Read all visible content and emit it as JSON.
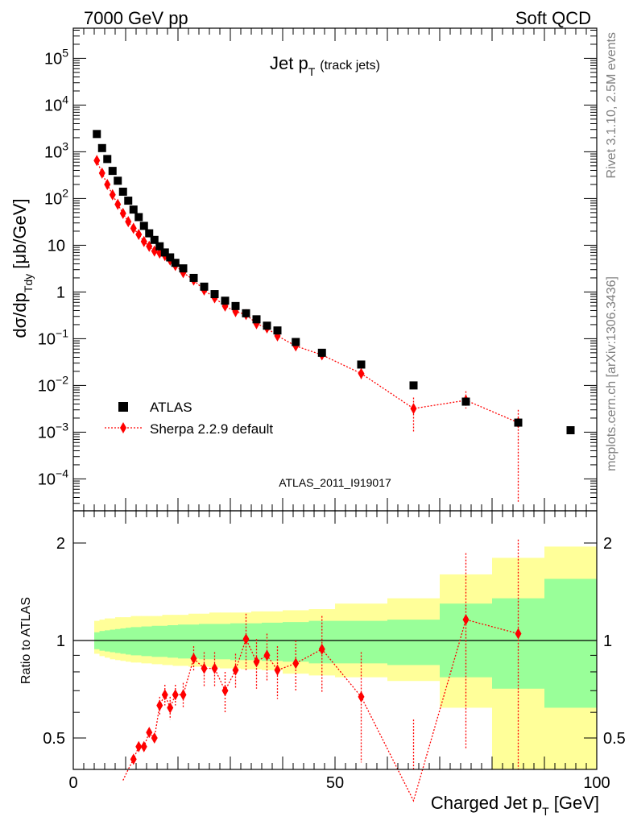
{
  "header": {
    "left": "7000 GeV pp",
    "right": "Soft QCD"
  },
  "side_labels": {
    "rivet": "Rivet 3.1.10,  2.5M events",
    "mcplots": "mcplots.cern.ch [arXiv:1306.3436]"
  },
  "colors": {
    "data": "#000000",
    "mc": "#ff0000",
    "band_inner": "#99ff99",
    "band_outer": "#ffff99",
    "analysis_label": "#909090"
  },
  "chart_data": [
    {
      "type": "scatter",
      "title": "Jet pT (track jets)",
      "title_main": "Jet p",
      "title_sub": "T",
      "title_extra": "(track jets)",
      "ylabel": "dσ/dp_Tdy [μb/GeV]",
      "ylabel_parts": {
        "main": "dσ/dp",
        "sub": "Tdy",
        "unit": " [μb/GeV]"
      },
      "yscale": "log",
      "xlim": [
        0,
        100
      ],
      "ylim": [
        3e-05,
        400000.0
      ],
      "analysis_label": "ATLAS_2011_I919017",
      "legend_position": "bottom-left",
      "ytick_labels": [
        {
          "value": 100000,
          "base": "10",
          "exp": "5"
        },
        {
          "value": 10000,
          "base": "10",
          "exp": "4"
        },
        {
          "value": 1000,
          "base": "10",
          "exp": "3"
        },
        {
          "value": 100,
          "base": "10",
          "exp": "2"
        },
        {
          "value": 10,
          "base": "10",
          "exp": ""
        },
        {
          "value": 1,
          "base": "1",
          "exp": ""
        },
        {
          "value": 0.1,
          "base": "10",
          "exp": "−1"
        },
        {
          "value": 0.01,
          "base": "10",
          "exp": "−2"
        },
        {
          "value": 0.001,
          "base": "10",
          "exp": "−3"
        },
        {
          "value": 0.0001,
          "base": "10",
          "exp": "−4"
        }
      ],
      "series": [
        {
          "name": "ATLAS",
          "marker": "square",
          "x": [
            4.5,
            5.5,
            6.5,
            7.5,
            8.5,
            9.5,
            10.5,
            11.5,
            12.5,
            13.5,
            14.5,
            15.5,
            16.5,
            17.5,
            18.5,
            19.5,
            21,
            23,
            25,
            27,
            29,
            31,
            33,
            35,
            37,
            39,
            42.5,
            47.5,
            55,
            65,
            75,
            85,
            95
          ],
          "y": [
            2400,
            1200,
            700,
            390,
            240,
            140,
            90,
            58,
            40,
            26,
            18,
            13,
            9.5,
            7,
            5.5,
            4.2,
            3.2,
            2.0,
            1.3,
            0.9,
            0.65,
            0.5,
            0.35,
            0.26,
            0.19,
            0.15,
            0.085,
            0.05,
            0.028,
            0.01,
            0.0045,
            0.0016,
            0.0011
          ]
        },
        {
          "name": "Sherpa 2.2.9 default",
          "marker": "diamond",
          "x": [
            4.5,
            5.5,
            6.5,
            7.5,
            8.5,
            9.5,
            10.5,
            11.5,
            12.5,
            13.5,
            14.5,
            15.5,
            16.5,
            17.5,
            18.5,
            19.5,
            21,
            23,
            25,
            27,
            29,
            31,
            33,
            35,
            37,
            39,
            42.5,
            47.5,
            55,
            65,
            75,
            85
          ],
          "y": [
            650,
            350,
            200,
            120,
            75,
            48,
            32,
            23,
            17,
            12,
            9.5,
            7.5,
            6.8,
            6.0,
            4.8,
            3.7,
            2.6,
            1.8,
            1.1,
            0.75,
            0.5,
            0.38,
            0.33,
            0.21,
            0.17,
            0.115,
            0.07,
            0.045,
            0.018,
            0.0032,
            0.0048,
            0.0016
          ]
        }
      ]
    },
    {
      "type": "scatter",
      "ylabel": "Ratio to ATLAS",
      "xlabel": "Charged Jet pT [GeV]",
      "xlabel_main": "Charged Jet p",
      "xlabel_sub": "T",
      "xlabel_unit": " [GeV]",
      "xlim": [
        0,
        100
      ],
      "ylim": [
        0.35,
        2.3
      ],
      "yscale": "log",
      "xticks": [
        0,
        50,
        100
      ],
      "yticks": [
        0.5,
        1,
        2
      ],
      "ytick_labels": [
        "0.5",
        "1",
        "2"
      ],
      "uncertainty_bands": {
        "x_edges": [
          4,
          5,
          6,
          7,
          8,
          9,
          10,
          11,
          12,
          13,
          14,
          15,
          16,
          17,
          18,
          19,
          20,
          22,
          24,
          26,
          28,
          30,
          32,
          34,
          36,
          38,
          40,
          45,
          50,
          60,
          70,
          80,
          90,
          100
        ],
        "inner_lo": [
          0.94,
          0.93,
          0.925,
          0.92,
          0.915,
          0.91,
          0.905,
          0.9,
          0.9,
          0.895,
          0.895,
          0.89,
          0.89,
          0.89,
          0.885,
          0.885,
          0.88,
          0.88,
          0.875,
          0.875,
          0.875,
          0.87,
          0.87,
          0.87,
          0.865,
          0.865,
          0.86,
          0.85,
          0.85,
          0.84,
          0.77,
          0.71,
          0.62
        ],
        "inner_hi": [
          1.06,
          1.07,
          1.075,
          1.08,
          1.085,
          1.09,
          1.095,
          1.1,
          1.1,
          1.105,
          1.105,
          1.11,
          1.11,
          1.11,
          1.115,
          1.115,
          1.12,
          1.12,
          1.125,
          1.125,
          1.125,
          1.13,
          1.13,
          1.13,
          1.135,
          1.135,
          1.14,
          1.15,
          1.15,
          1.16,
          1.3,
          1.35,
          1.55
        ],
        "outer_lo": [
          0.91,
          0.895,
          0.885,
          0.875,
          0.87,
          0.865,
          0.86,
          0.855,
          0.855,
          0.85,
          0.85,
          0.845,
          0.845,
          0.84,
          0.84,
          0.835,
          0.835,
          0.83,
          0.83,
          0.825,
          0.82,
          0.82,
          0.815,
          0.815,
          0.81,
          0.81,
          0.79,
          0.78,
          0.77,
          0.75,
          0.62,
          0.35,
          0.35
        ],
        "outer_hi": [
          1.15,
          1.16,
          1.17,
          1.17,
          1.18,
          1.18,
          1.18,
          1.19,
          1.19,
          1.19,
          1.19,
          1.19,
          1.19,
          1.2,
          1.2,
          1.2,
          1.2,
          1.21,
          1.21,
          1.22,
          1.22,
          1.22,
          1.22,
          1.23,
          1.23,
          1.23,
          1.24,
          1.25,
          1.3,
          1.35,
          1.6,
          1.8,
          1.95
        ]
      },
      "series": [
        {
          "name": "Sherpa 2.2.9 default",
          "x": [
            9.5,
            10.5,
            11.5,
            12.5,
            13.5,
            14.5,
            15.5,
            16.5,
            17.5,
            18.5,
            19.5,
            21,
            23,
            25,
            27,
            29,
            31,
            33,
            35,
            37,
            39,
            42.5,
            47.5,
            55,
            65,
            75,
            85
          ],
          "y": [
            0.37,
            0.4,
            0.43,
            0.47,
            0.47,
            0.52,
            0.5,
            0.63,
            0.68,
            0.62,
            0.68,
            0.68,
            0.88,
            0.82,
            0.82,
            0.7,
            0.81,
            1.01,
            0.86,
            0.9,
            0.81,
            0.85,
            0.94,
            0.67,
            0.32,
            1.16,
            1.05
          ],
          "yerr": [
            0.02,
            0.02,
            0.02,
            0.03,
            0.03,
            0.03,
            0.03,
            0.04,
            0.05,
            0.05,
            0.05,
            0.06,
            0.08,
            0.1,
            0.1,
            0.1,
            0.1,
            0.2,
            0.15,
            0.15,
            0.15,
            0.15,
            0.25,
            0.25,
            0.25,
            0.7,
            1.0
          ]
        }
      ]
    }
  ]
}
